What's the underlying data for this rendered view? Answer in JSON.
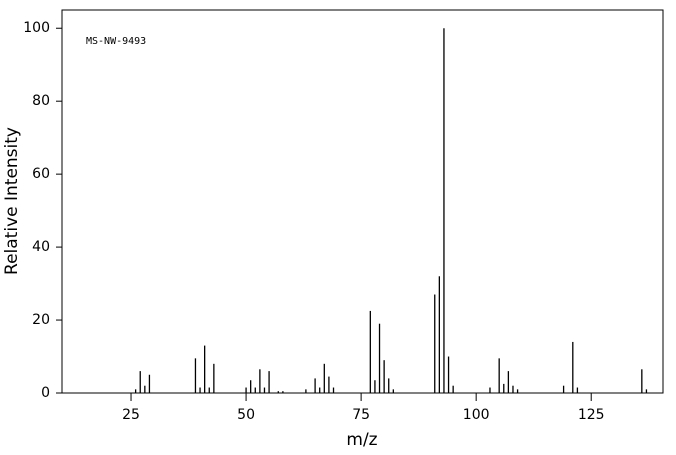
{
  "chart_data": {
    "type": "bar",
    "annotation": "MS-NW-9493",
    "x_label": "m/z",
    "y_label": "Relative Intensity",
    "x": [
      26,
      27,
      28,
      29,
      39,
      40,
      41,
      42,
      43,
      50,
      51,
      52,
      53,
      54,
      55,
      57,
      58,
      63,
      65,
      66,
      67,
      68,
      69,
      77,
      78,
      79,
      80,
      81,
      82,
      91,
      92,
      93,
      94,
      95,
      103,
      105,
      106,
      107,
      108,
      109,
      119,
      121,
      122,
      136,
      137
    ],
    "values": [
      1,
      6,
      2,
      5,
      9.5,
      1.5,
      13,
      1.5,
      8,
      1.5,
      3.5,
      1.5,
      6.5,
      1.5,
      6,
      0.5,
      0.5,
      1,
      4,
      1.5,
      8,
      4.5,
      1.5,
      22.5,
      3.5,
      19,
      9,
      4,
      1,
      27,
      32,
      100,
      10,
      2,
      1.5,
      9.5,
      2.5,
      6,
      2,
      1,
      2,
      14,
      1.5,
      6.5,
      1
    ],
    "color": "#000000",
    "xlim": [
      10,
      140.6
    ],
    "ylim": [
      0,
      105
    ],
    "xticks": [
      25,
      50,
      75,
      100,
      125
    ],
    "yticks": [
      0,
      20,
      40,
      60,
      80,
      100
    ]
  }
}
